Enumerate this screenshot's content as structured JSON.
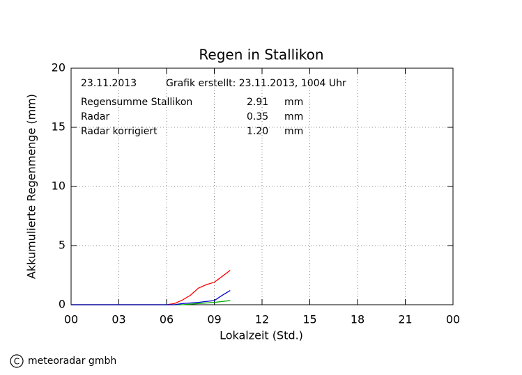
{
  "chart_data": {
    "type": "line",
    "title": "Regen in Stallikon",
    "date": "23.11.2013",
    "created": "Grafik erstellt: 23.11.2013, 1004 Uhr",
    "x_label": "Lokalzeit (Std.)",
    "y_label": "Akkumulierte Regenmenge (mm)",
    "unit": "mm",
    "footer": "meteoradar gmbh",
    "xlim": [
      0,
      24
    ],
    "xticks": [
      {
        "value": 0,
        "label": "00"
      },
      {
        "value": 3,
        "label": "03"
      },
      {
        "value": 6,
        "label": "06"
      },
      {
        "value": 9,
        "label": "09"
      },
      12,
      15,
      18,
      21,
      {
        "value": 24,
        "label": "00"
      }
    ],
    "ylim": [
      0,
      20
    ],
    "yticks": [
      0,
      5,
      10,
      15,
      20
    ],
    "grid": true,
    "series": [
      {
        "name": "Regensumme Stallikon",
        "color": "#ff0000",
        "total": 2.91,
        "total_label": "2.91",
        "x": [
          0,
          6,
          6.5,
          7,
          7.5,
          8,
          8.5,
          9,
          9.5,
          10
        ],
        "values": [
          0,
          0,
          0.1,
          0.4,
          0.8,
          1.4,
          1.7,
          1.9,
          2.4,
          2.91
        ]
      },
      {
        "name": "Radar",
        "color": "#00aa00",
        "total": 0.35,
        "total_label": "0.35",
        "x": [
          0,
          7,
          8,
          9,
          10
        ],
        "values": [
          0,
          0,
          0.1,
          0.2,
          0.35
        ]
      },
      {
        "name": "Radar korrigiert",
        "color": "#0000cc",
        "total": 1.2,
        "total_label": "1.20",
        "x": [
          0,
          6.5,
          7,
          8,
          9,
          9.5,
          10
        ],
        "values": [
          0,
          0,
          0.1,
          0.2,
          0.35,
          0.8,
          1.2
        ]
      }
    ]
  }
}
